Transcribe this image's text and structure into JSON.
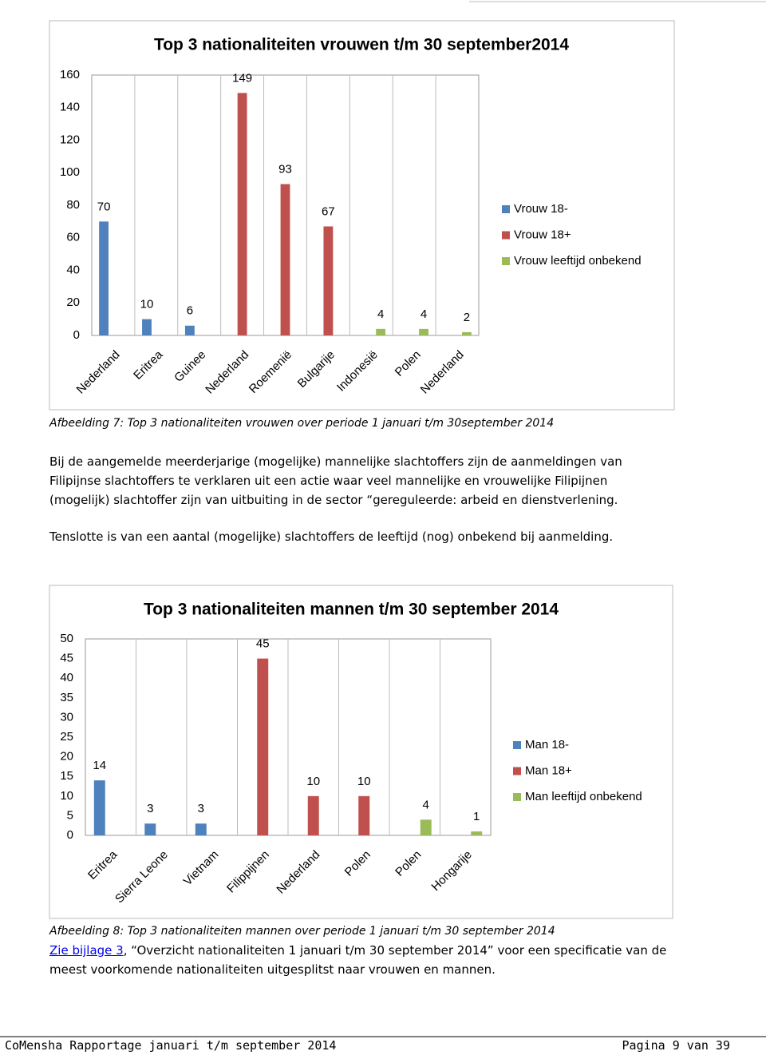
{
  "chart_data": [
    {
      "type": "bar",
      "title": "Top 3 nationaliteiten vrouwen t/m 30 september2014",
      "categories": [
        "Nederland",
        "Eritrea",
        "Guinee",
        "Nederland",
        "Roemenië",
        "Bulgarije",
        "Indonesië",
        "Polen",
        "Nederland"
      ],
      "series": [
        {
          "name": "Vrouw 18-",
          "color": "#4f81bd",
          "values": [
            70,
            10,
            6,
            null,
            null,
            null,
            null,
            null,
            null
          ]
        },
        {
          "name": "Vrouw 18+",
          "color": "#c0504d",
          "values": [
            null,
            null,
            null,
            149,
            93,
            67,
            null,
            null,
            null
          ]
        },
        {
          "name": "Vrouw leeftijd onbekend",
          "color": "#9bbb59",
          "values": [
            null,
            null,
            null,
            null,
            null,
            null,
            4,
            4,
            2
          ]
        }
      ],
      "ylim": [
        0,
        160
      ],
      "yticks": [
        0,
        20,
        40,
        60,
        80,
        100,
        120,
        140,
        160
      ],
      "legend": "right"
    },
    {
      "type": "bar",
      "title": "Top 3 nationaliteiten mannen t/m 30 september 2014",
      "categories": [
        "Eritrea",
        "Sierra Leone",
        "Vietnam",
        "Filippijnen",
        "Nederland",
        "Polen",
        "Polen",
        "Hongarije"
      ],
      "series": [
        {
          "name": "Man 18-",
          "color": "#4f81bd",
          "values": [
            14,
            3,
            3,
            null,
            null,
            null,
            null,
            null
          ]
        },
        {
          "name": "Man 18+",
          "color": "#c0504d",
          "values": [
            null,
            null,
            null,
            45,
            10,
            10,
            null,
            null
          ]
        },
        {
          "name": "Man leeftijd onbekend",
          "color": "#9bbb59",
          "values": [
            null,
            null,
            null,
            null,
            null,
            null,
            4,
            1
          ]
        }
      ],
      "ylim": [
        0,
        50
      ],
      "yticks": [
        0,
        5,
        10,
        15,
        20,
        25,
        30,
        35,
        40,
        45,
        50
      ],
      "legend": "right"
    }
  ],
  "captions": [
    "Afbeelding 7: Top 3 nationaliteiten vrouwen over periode 1 januari t/m 30september 2014",
    "Afbeelding 8: Top 3 nationaliteiten mannen over periode 1 januari t/m 30 september 2014"
  ],
  "paragraphs": [
    "Bij de aangemelde meerderjarige (mogelijke) mannelijke slachtoffers zijn de aanmeldingen van Filipijnse slachtoffers te verklaren uit een actie waar veel mannelijke en vrouwelijke Filipijnen (mogelijk) slachtoffer zijn van uitbuiting in de sector “gereguleerde: arbeid en dienstverlening.",
    "Tenslotte is van een aantal (mogelijke) slachtoffers de  leeftijd (nog) onbekend bij aanmelding."
  ],
  "reference": {
    "link": "Zie bijlage 3",
    "text": ", “Overzicht nationaliteiten 1 januari t/m 30 september 2014” voor een specificatie van de meest voorkomende nationaliteiten uitgesplitst naar vrouwen en mannen."
  },
  "footer": {
    "left": "CoMensha Rapportage januari t/m september 2014",
    "right": "Pagina 9 van 39"
  }
}
